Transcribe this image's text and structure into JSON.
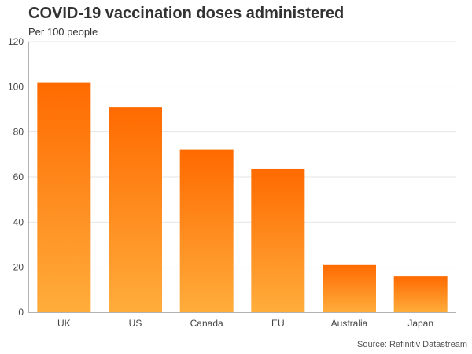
{
  "chart_data": {
    "type": "bar",
    "title": "COVID-19 vaccination doses administered",
    "subtitle": "Per 100 people",
    "categories": [
      "UK",
      "US",
      "Canada",
      "EU",
      "Australia",
      "Japan"
    ],
    "values": [
      102,
      91,
      72,
      63.5,
      21,
      16
    ],
    "ylim": [
      0,
      120
    ],
    "yticks": [
      0,
      20,
      40,
      60,
      80,
      100,
      120
    ],
    "xlabel": "",
    "ylabel": "",
    "grid": true,
    "source": "Source: Refinitiv Datastream"
  },
  "colors": {
    "bar_top": "#ff6a00",
    "bar_bottom": "#ffad3c",
    "grid": "#e6e6e6",
    "axis": "#666666"
  }
}
